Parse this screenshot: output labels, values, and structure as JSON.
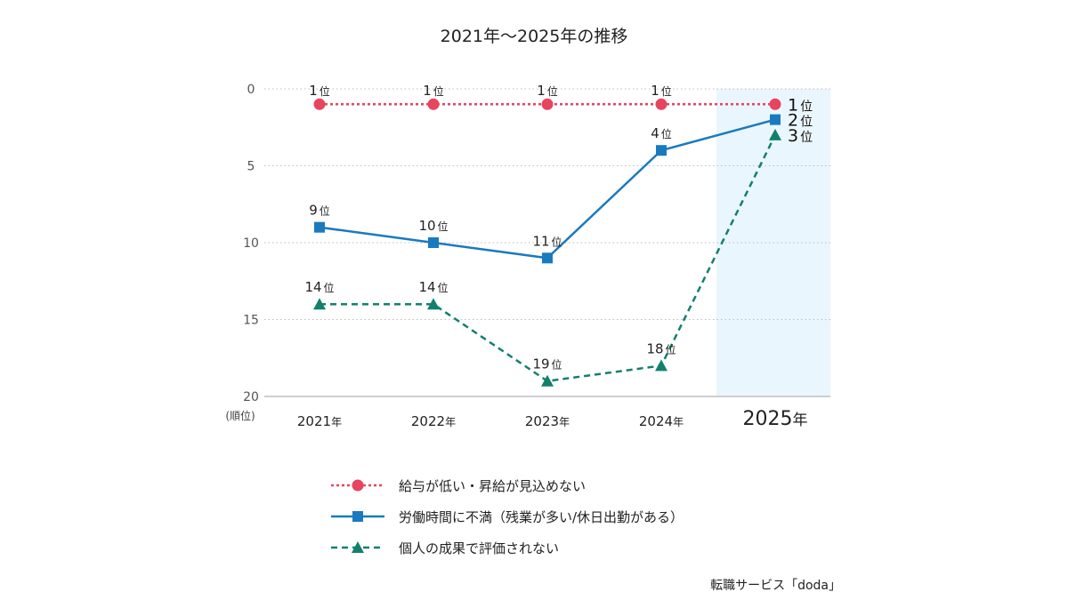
{
  "chart_data": {
    "type": "line",
    "title": "2021年～2025年の推移",
    "xlabel": "",
    "ylabel": "(順位)",
    "x": [
      "2021",
      "2022",
      "2023",
      "2024",
      "2025"
    ],
    "x_tick_labels": [
      {
        "num": "2021",
        "suffix": "年"
      },
      {
        "num": "2022",
        "suffix": "年"
      },
      {
        "num": "2023",
        "suffix": "年"
      },
      {
        "num": "2024",
        "suffix": "年"
      },
      {
        "num": "2025",
        "suffix": "年"
      }
    ],
    "highlight_category": "2025",
    "y_ticks": [
      0,
      5,
      10,
      15,
      20
    ],
    "ylim": [
      0,
      20
    ],
    "y_inverted": true,
    "grid": true,
    "rank_suffix": "位",
    "series": [
      {
        "name": "給与が低い・昇給が見込めない",
        "values": [
          1,
          1,
          1,
          1,
          1
        ],
        "color": "#e8445e",
        "line_style": "dotted",
        "marker": "circle"
      },
      {
        "name": "労働時間に不満（残業が多い/休日出勤がある）",
        "values": [
          9,
          10,
          11,
          4,
          2
        ],
        "color": "#1a7abf",
        "line_style": "solid",
        "marker": "square"
      },
      {
        "name": "個人の成果で評価されない",
        "values": [
          14,
          14,
          19,
          18,
          3
        ],
        "color": "#13806e",
        "line_style": "dashed",
        "marker": "triangle"
      }
    ],
    "legend_position": "bottom",
    "source": "転職サービス「doda」"
  }
}
